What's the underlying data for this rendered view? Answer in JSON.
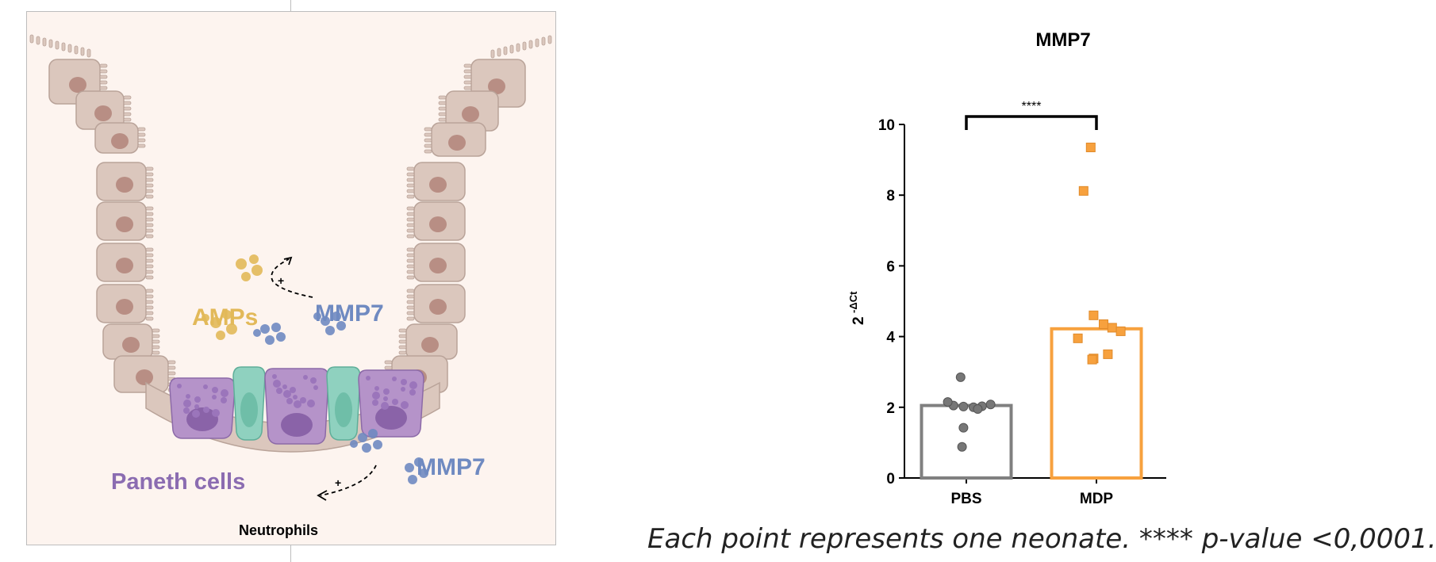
{
  "illustration": {
    "amps_label": "AMPs",
    "mmp7_top_label": "MMP7",
    "mmp7_bottom_label": "MMP7",
    "paneth_label": "Paneth cells",
    "neutrophils_label": "Neutrophils",
    "plus_sign": "+",
    "colors": {
      "tissue_background": "#fdf4ef",
      "epithelial_cell": "#dbc7bd",
      "nucleus": "#b88e84",
      "paneth_cell": "#b593c9",
      "stem_cell": "#8fd1bf",
      "amp": "#e2b959",
      "mmp7": "#6f8ac1"
    }
  },
  "chart_data": {
    "type": "bar",
    "title": "MMP7",
    "xlabel": "",
    "ylabel": "2 -ΔCt",
    "ylabel_base": "2",
    "ylabel_exp": "-ΔCt",
    "categories": [
      "PBS",
      "MDP"
    ],
    "values": [
      2.05,
      4.22
    ],
    "colors": [
      "#808080",
      "#f7a13e"
    ],
    "points": [
      [
        2.85,
        2.05,
        2.02,
        2.0,
        2.03,
        2.08,
        2.15,
        1.95,
        1.42,
        0.88
      ],
      [
        9.35,
        8.12,
        4.6,
        4.35,
        4.25,
        4.15,
        3.95,
        3.5,
        3.38,
        3.35
      ]
    ],
    "ylim": [
      0,
      10
    ],
    "yticks": [
      0,
      2,
      4,
      6,
      8,
      10
    ],
    "significance": "****",
    "grid": false
  },
  "caption": "Each point represents one neonate. **** p-value <0,0001."
}
